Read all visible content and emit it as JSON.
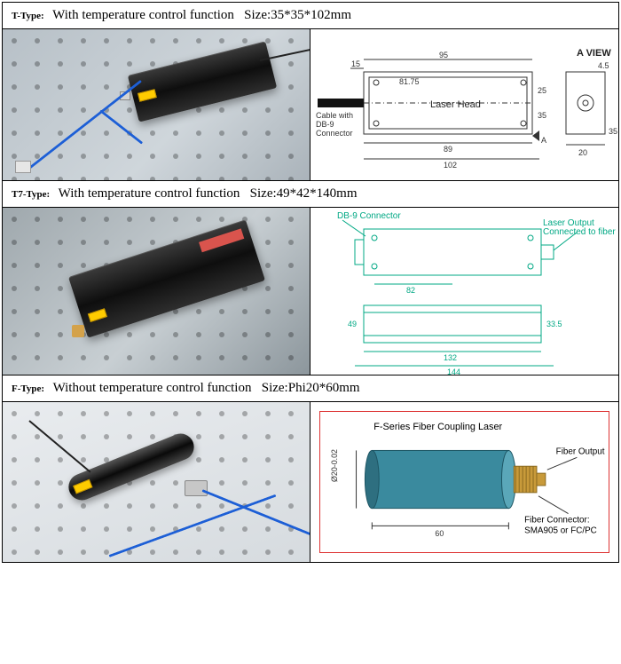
{
  "sections": [
    {
      "type_label": "T-Type:",
      "desc": "With temperature control function",
      "size_prefix": "Size:",
      "size": "35*35*102mm",
      "diagram": {
        "title": "A VIEW",
        "box_label": "Laser Head",
        "cable_label1": "Cable with",
        "cable_label2": "DB-9",
        "cable_label3": "Connector",
        "dim_top": "95",
        "dim_left": "15",
        "dim_upper": "81.75",
        "dim_lower": "89",
        "dim_bottom": "102",
        "dim_h1": "25",
        "dim_h2": "35",
        "a_arrow": "A",
        "aview_w": "20",
        "aview_h": "35",
        "aview_t": "4.5"
      }
    },
    {
      "type_label": "T7-Type:",
      "desc": "With temperature control function",
      "size_prefix": "Size:",
      "size": "49*42*140mm",
      "diagram": {
        "db9": "DB-9 Connector",
        "out1": "Laser Output",
        "out2": "Connected to fiber",
        "dim_a": "82",
        "dim_b": "49",
        "dim_c": "33.5",
        "dim_d": "132",
        "dim_e": "144"
      }
    },
    {
      "type_label": "F-Type:",
      "desc": "Without temperature control function",
      "size_prefix": "Size:",
      "size": "Phi20*60mm",
      "diagram": {
        "title": "F-Series Fiber Coupling Laser",
        "out": "Fiber Output",
        "conn1": "Fiber Connector:",
        "conn2": "SMA905 or FC/PC",
        "dim_dia": "Ø20-0.02",
        "dim_len": "60"
      }
    }
  ]
}
